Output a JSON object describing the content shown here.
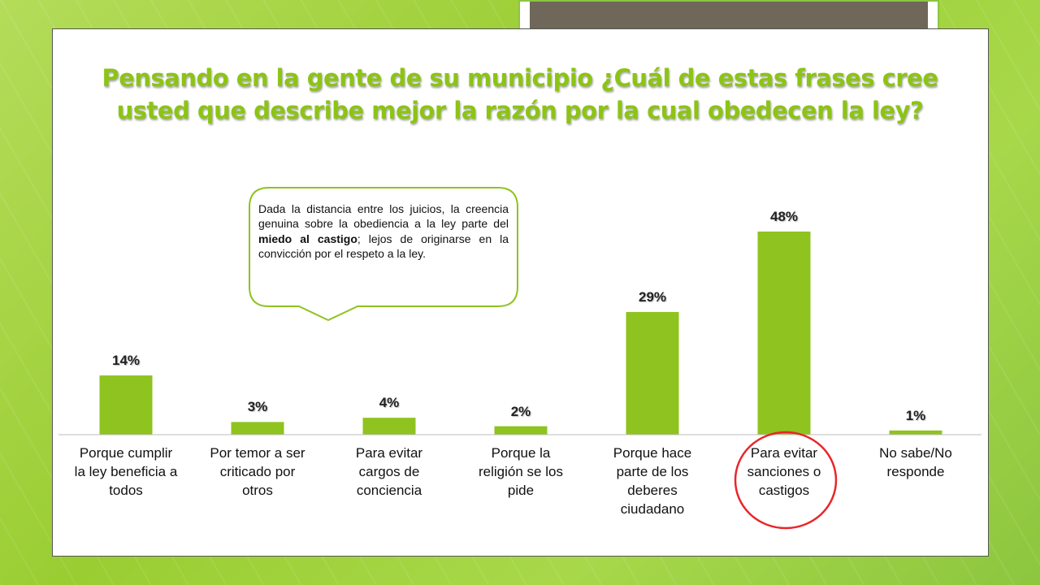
{
  "slide": {
    "title_line1": "Pensando en la gente de su municipio ¿Cuál de estas frases cree",
    "title_line2": "usted que describe mejor la razón por la cual obedecen la ley?"
  },
  "callout": {
    "text_part1": "Dada la distancia entre los juicios, la creencia genuina sobre la obediencia a la ley parte del ",
    "text_bold": "miedo al castigo",
    "text_part2": "; lejos de originarse en la convicción por el respeto a la ley."
  },
  "colors": {
    "bar": "#8fc31f",
    "title": "#8cc414",
    "highlight_circle": "#e8262a",
    "callout_border": "#8fc31f"
  },
  "chart_data": {
    "type": "bar",
    "title": "",
    "xlabel": "",
    "ylabel": "",
    "categories": [
      "Porque cumplir la ley beneficia a todos",
      "Por temor a ser criticado por otros",
      "Para evitar cargos de conciencia",
      "Porque la religión se los pide",
      "Porque hace parte de los deberes ciudadano",
      "Para evitar sanciones o castigos",
      "No sabe/No responde"
    ],
    "category_lines": [
      [
        "Porque cumplir",
        "la ley beneficia a",
        "todos"
      ],
      [
        "Por temor a ser",
        "criticado por",
        "otros"
      ],
      [
        "Para evitar",
        "cargos de",
        "conciencia"
      ],
      [
        "Porque la",
        "religión se los",
        "pide"
      ],
      [
        "Porque hace",
        "parte de los",
        "deberes",
        "ciudadano"
      ],
      [
        "Para evitar",
        "sanciones o",
        "castigos"
      ],
      [
        "No sabe/No",
        "responde"
      ]
    ],
    "values": [
      14,
      3,
      4,
      2,
      29,
      48,
      1
    ],
    "data_labels": [
      "14%",
      "3%",
      "4%",
      "2%",
      "29%",
      "48%",
      "1%"
    ],
    "unit": "%",
    "ylim": [
      0,
      50
    ],
    "grid": false,
    "legend": "none",
    "highlighted_category": "Para evitar sanciones o castigos"
  }
}
